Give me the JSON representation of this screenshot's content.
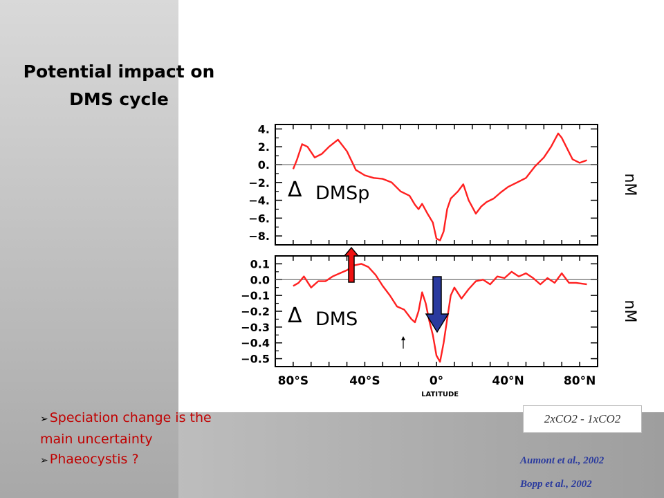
{
  "slide": {
    "title_lines": [
      "Potential impact on",
      "DMS cycle"
    ],
    "bullets": [
      {
        "mark": "➢",
        "text": "Speciation change is the",
        "continuation": "main uncertainty"
      },
      {
        "mark": "➢",
        "text": "Phaeocystis ?"
      }
    ],
    "label_box": "2xCO2 - 1xCO2",
    "references": [
      "Aumont et al., 2002",
      "Bopp et al., 2002"
    ]
  },
  "chart_data": [
    {
      "type": "line",
      "panel_label": "Δ DMSp",
      "ylabel": "nM",
      "xlabel": "LATITUDE",
      "xlim": [
        -90,
        90
      ],
      "ylim": [
        -9,
        4.5
      ],
      "yticks": [
        4,
        2,
        0,
        -2,
        -4,
        -6,
        -8
      ],
      "ytick_labels": [
        "4.",
        "2.",
        "0.",
        "−2.",
        "−4.",
        "−6.",
        "−8."
      ],
      "zero_line": true,
      "color": "#ff2020",
      "x": [
        -80,
        -78,
        -75,
        -72,
        -68,
        -64,
        -60,
        -55,
        -50,
        -45,
        -40,
        -35,
        -30,
        -25,
        -20,
        -15,
        -12,
        -10,
        -8,
        -5,
        -2,
        0,
        2,
        4,
        6,
        8,
        12,
        15,
        18,
        22,
        25,
        28,
        32,
        36,
        40,
        45,
        50,
        55,
        60,
        64,
        68,
        70,
        73,
        76,
        80,
        84
      ],
      "y": [
        -0.5,
        0.5,
        2.3,
        2.0,
        0.8,
        1.2,
        2.0,
        2.8,
        1.5,
        -0.6,
        -1.2,
        -1.5,
        -1.6,
        -2.0,
        -3.0,
        -3.5,
        -4.5,
        -5.0,
        -4.4,
        -5.5,
        -6.5,
        -8.3,
        -8.5,
        -7.5,
        -5.0,
        -3.8,
        -3.0,
        -2.2,
        -4.0,
        -5.5,
        -4.7,
        -4.2,
        -3.8,
        -3.1,
        -2.5,
        -2.0,
        -1.5,
        -0.2,
        0.8,
        2.0,
        3.5,
        3.0,
        1.8,
        0.6,
        0.2,
        0.5
      ]
    },
    {
      "type": "line",
      "panel_label": "Δ DMS",
      "ylabel": "nM",
      "xlabel": "LATITUDE",
      "xlim": [
        -90,
        90
      ],
      "ylim": [
        -0.55,
        0.15
      ],
      "yticks": [
        0.1,
        0.0,
        -0.1,
        -0.2,
        -0.3,
        -0.4,
        -0.5
      ],
      "ytick_labels": [
        "0.1",
        "0.0",
        "−0.1",
        "−0.2",
        "−0.3",
        "−0.4",
        "−0.5"
      ],
      "xticks": [
        -80,
        -40,
        0,
        40,
        80
      ],
      "xtick_labels": [
        "80°S",
        "40°S",
        "0°",
        "40°N",
        "80°N"
      ],
      "zero_line": true,
      "color": "#ff2020",
      "x": [
        -80,
        -77,
        -74,
        -70,
        -66,
        -62,
        -58,
        -54,
        -50,
        -46,
        -42,
        -38,
        -34,
        -30,
        -26,
        -22,
        -18,
        -14,
        -12,
        -10,
        -8,
        -6,
        -4,
        -2,
        0,
        2,
        4,
        6,
        8,
        10,
        14,
        18,
        22,
        26,
        30,
        34,
        38,
        42,
        46,
        50,
        54,
        58,
        62,
        66,
        70,
        74,
        78,
        84
      ],
      "y": [
        -0.04,
        -0.02,
        0.02,
        -0.05,
        -0.01,
        -0.01,
        0.02,
        0.04,
        0.06,
        0.09,
        0.1,
        0.08,
        0.03,
        -0.04,
        -0.1,
        -0.17,
        -0.19,
        -0.25,
        -0.27,
        -0.2,
        -0.08,
        -0.15,
        -0.26,
        -0.35,
        -0.48,
        -0.52,
        -0.4,
        -0.25,
        -0.1,
        -0.05,
        -0.12,
        -0.06,
        -0.01,
        0.0,
        -0.03,
        0.02,
        0.01,
        0.05,
        0.02,
        0.04,
        0.01,
        -0.03,
        0.01,
        -0.02,
        0.04,
        -0.02,
        -0.02,
        -0.03
      ]
    }
  ],
  "annotations": {
    "up_arrow_color": "#ee1111",
    "down_arrow_color": "#2a3a9e"
  }
}
